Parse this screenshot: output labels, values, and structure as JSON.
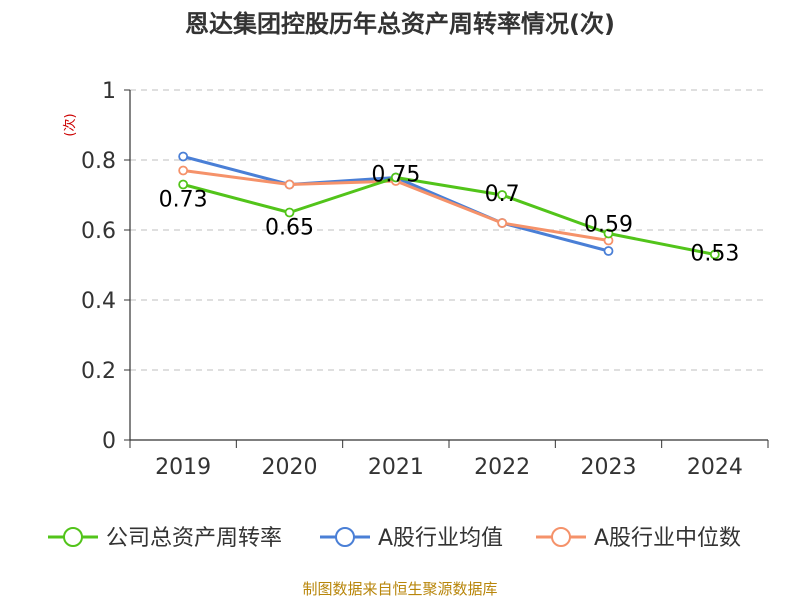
{
  "chart_data": {
    "type": "line",
    "title": "恩达集团控股历年总资产周转率情况(次)",
    "ylabel": "(次)",
    "xlabel": "",
    "categories": [
      "2019",
      "2020",
      "2021",
      "2022",
      "2023",
      "2024"
    ],
    "ylim": [
      0,
      1
    ],
    "yticks": [
      "0",
      "0.2",
      "0.4",
      "0.6",
      "0.8",
      "1"
    ],
    "grid": true,
    "legend_position": "bottom",
    "series": [
      {
        "name": "公司总资产周转率",
        "color": "#52c41a",
        "values": [
          0.73,
          0.65,
          0.75,
          0.7,
          0.59,
          0.53
        ],
        "labels": [
          "0.73",
          "0.65",
          "0.75",
          "0.7",
          "0.59",
          "0.53"
        ]
      },
      {
        "name": "A股行业均值",
        "color": "#4a7fd6",
        "values": [
          0.81,
          0.73,
          0.75,
          0.62,
          0.54,
          null
        ]
      },
      {
        "name": "A股行业中位数",
        "color": "#f5926a",
        "values": [
          0.77,
          0.73,
          0.74,
          0.62,
          0.57,
          null
        ]
      }
    ]
  },
  "source_text": "制图数据来自恒生聚源数据库"
}
